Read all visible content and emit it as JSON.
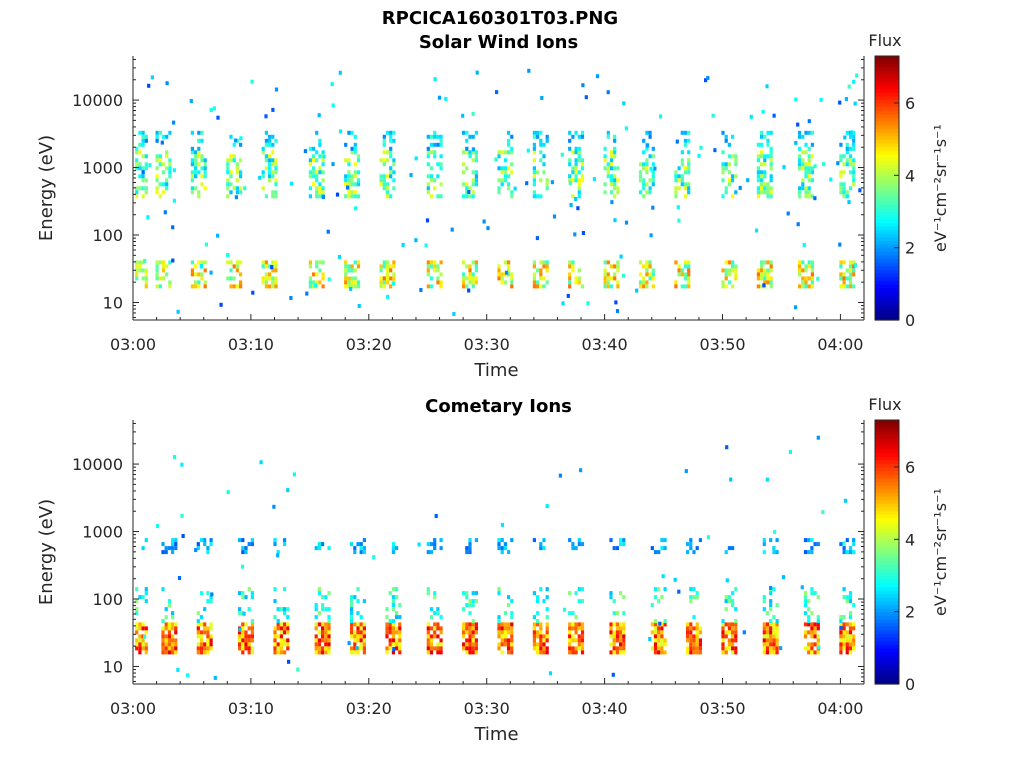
{
  "figure_title": "RPCICA160301T03.PNG",
  "chart_data": [
    {
      "type": "heatmap",
      "title": "Solar Wind Ions",
      "xlabel": "Time",
      "ylabel": "Energy (eV)",
      "x_ticks": [
        "03:00",
        "03:10",
        "03:20",
        "03:30",
        "03:40",
        "03:50",
        "04:00"
      ],
      "x_range_minutes": [
        0,
        62
      ],
      "y_ticks": [
        "10",
        "100",
        "1000",
        "10000"
      ],
      "y_tick_values": [
        10,
        100,
        1000,
        10000
      ],
      "y_range": [
        5.5,
        45000
      ],
      "y_scale": "log",
      "colorbar": {
        "title": "Flux",
        "unit": "eV⁻¹cm⁻²sr⁻¹s⁻¹",
        "ticks": [
          "0",
          "2",
          "4",
          "6"
        ],
        "range": [
          0,
          7.3
        ],
        "colormap": "jet"
      },
      "bands": [
        {
          "e_lo": 18,
          "e_hi": 42,
          "level_lo": 3.0,
          "level_hi": 5.6,
          "density": 0.65
        },
        {
          "e_lo": 400,
          "e_hi": 1800,
          "level_lo": 2.2,
          "level_hi": 4.6,
          "density": 0.5
        },
        {
          "e_lo": 2000,
          "e_hi": 3500,
          "level_lo": 1.8,
          "level_hi": 3.2,
          "density": 0.3
        }
      ],
      "burst_times_minutes": [
        0.5,
        2.5,
        5.5,
        8.5,
        11.5,
        15.5,
        18.5,
        21.5,
        25.5,
        28.5,
        31.5,
        34.5,
        37.5,
        40.5,
        43.5,
        46.5,
        50.5,
        53.5,
        57.0,
        60.5
      ],
      "scatter_points": 170
    },
    {
      "type": "heatmap",
      "title": "Cometary Ions",
      "xlabel": "Time",
      "ylabel": "Energy (eV)",
      "x_ticks": [
        "03:00",
        "03:10",
        "03:20",
        "03:30",
        "03:40",
        "03:50",
        "04:00"
      ],
      "x_range_minutes": [
        0,
        62
      ],
      "y_ticks": [
        "10",
        "100",
        "1000",
        "10000"
      ],
      "y_tick_values": [
        10,
        100,
        1000,
        10000
      ],
      "y_range": [
        5.5,
        45000
      ],
      "y_scale": "log",
      "colorbar": {
        "title": "Flux",
        "unit": "eV⁻¹cm⁻²sr⁻¹s⁻¹",
        "ticks": [
          "0",
          "2",
          "4",
          "6"
        ],
        "range": [
          0,
          7.3
        ],
        "colormap": "jet"
      },
      "bands": [
        {
          "e_lo": 16,
          "e_hi": 45,
          "level_lo": 4.2,
          "level_hi": 6.6,
          "density": 0.85
        },
        {
          "e_lo": 50,
          "e_hi": 150,
          "level_lo": 2.2,
          "level_hi": 3.8,
          "density": 0.25
        },
        {
          "e_lo": 500,
          "e_hi": 800,
          "level_lo": 1.5,
          "level_hi": 2.8,
          "density": 0.35
        }
      ],
      "burst_times_minutes": [
        0.5,
        3.0,
        6.0,
        9.5,
        12.5,
        16.0,
        19.0,
        22.0,
        25.5,
        28.5,
        31.5,
        34.5,
        37.5,
        41.0,
        44.5,
        47.5,
        50.5,
        54.0,
        57.5,
        60.5
      ],
      "scatter_points": 60
    }
  ]
}
